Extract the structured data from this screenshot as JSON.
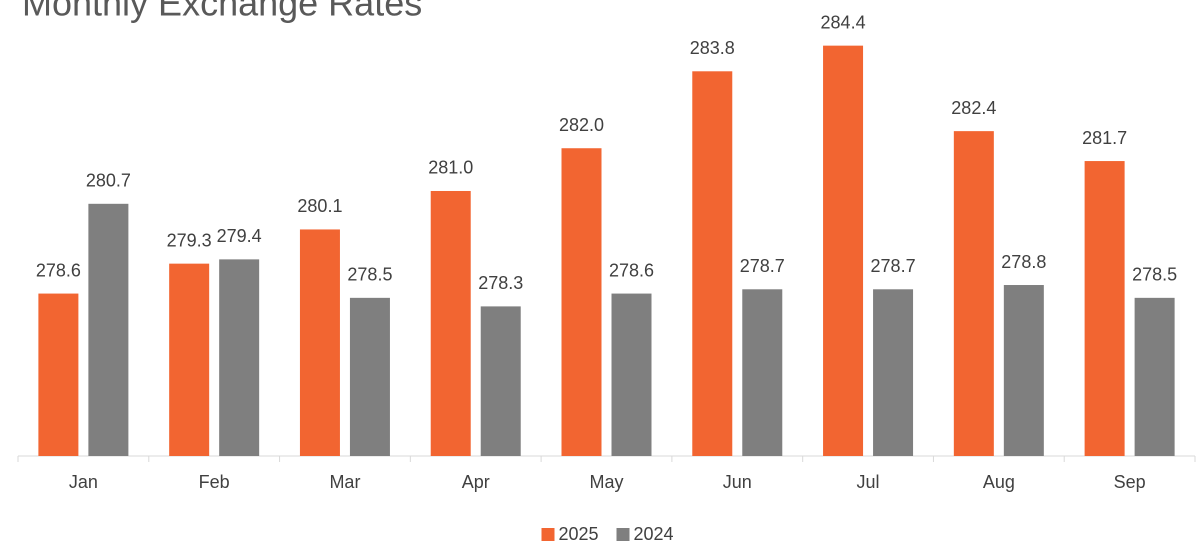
{
  "chart_data": {
    "type": "bar",
    "title": "Monthly Exchange Rates",
    "categories": [
      "Jan",
      "Feb",
      "Mar",
      "Apr",
      "May",
      "Jun",
      "Jul",
      "Aug",
      "Sep"
    ],
    "series": [
      {
        "name": "2025",
        "color": "#f26531",
        "values": [
          278.6,
          279.3,
          280.1,
          281.0,
          282.0,
          283.8,
          284.4,
          282.4,
          281.7
        ],
        "value_labels": [
          "278.6",
          "279.3",
          "280.1",
          "281.0",
          "282.0",
          "283.8",
          "284.4",
          "282.4",
          "281.7"
        ]
      },
      {
        "name": "2024",
        "color": "#7f7f7f",
        "values": [
          280.7,
          279.4,
          278.5,
          278.3,
          278.6,
          278.7,
          278.7,
          278.8,
          278.5
        ],
        "value_labels": [
          "280.7",
          "279.4",
          "278.5",
          "278.3",
          "278.6",
          "278.7",
          "278.7",
          "278.8",
          "278.5"
        ]
      }
    ],
    "ylim": [
      274.8,
      285
    ],
    "legend": "bottom"
  }
}
